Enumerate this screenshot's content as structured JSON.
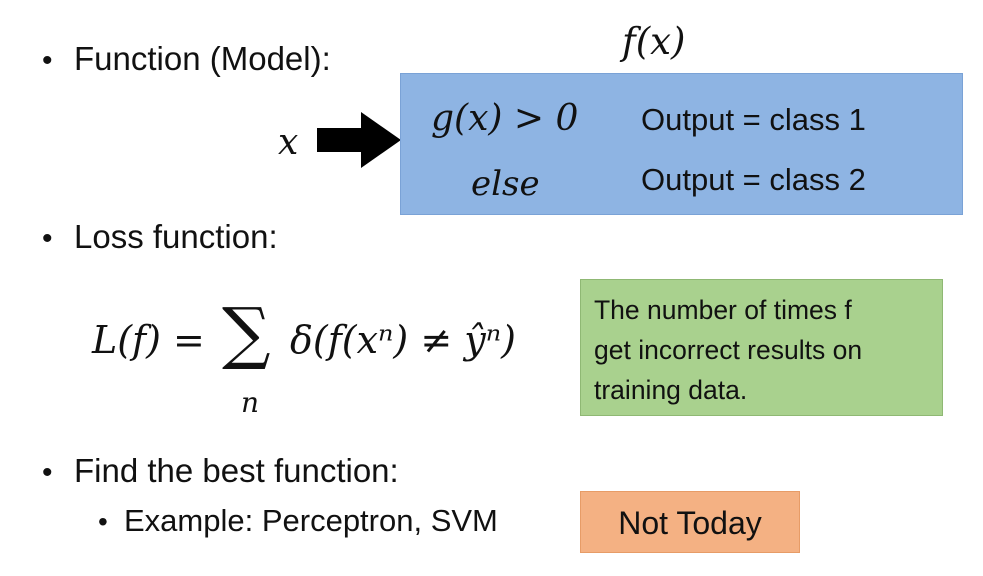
{
  "slide": {
    "bullets": {
      "function": "Function (Model):",
      "loss": "Loss function:",
      "find": "Find the best function:",
      "example": "Example: Perceptron, SVM"
    },
    "model": {
      "fx_label": "f(x)",
      "input_label": "x",
      "rows": [
        {
          "condition": "g(x) > 0",
          "output": "Output = class 1"
        },
        {
          "condition": "else",
          "output": "Output = class 2"
        }
      ]
    },
    "loss_formula": {
      "lhs": "L(f) =",
      "sigma": "∑",
      "body": "δ(f(xⁿ) ≠ ŷⁿ)",
      "subscript": "n"
    },
    "note_green": {
      "lines": [
        "The number of times f",
        "get incorrect results on",
        "training data."
      ]
    },
    "note_orange": "Not Today"
  }
}
